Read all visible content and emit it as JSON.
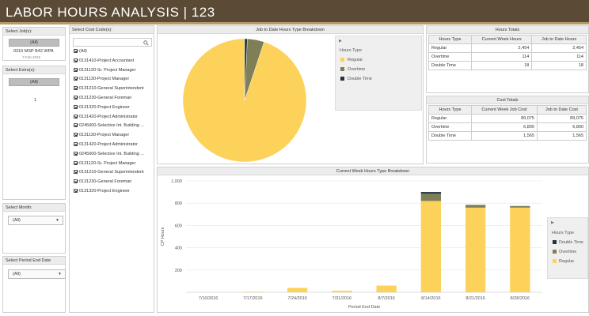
{
  "header": {
    "title": "LABOR HOURS ANALYSIS | 123"
  },
  "jobs": {
    "title": "Select Job(s):",
    "all_label": "(All)",
    "line1": "0310 MSP B42 WPA",
    "line2": "7-Feb-2015"
  },
  "extras": {
    "title": "Select Extra(s):",
    "all_label": "(All)",
    "value": "1"
  },
  "month": {
    "title": "Select Month:",
    "value": "(All)"
  },
  "period": {
    "title": "Select Period End Date",
    "value": "(All)"
  },
  "cost_codes": {
    "title": "Select Cost Code(s):",
    "items": [
      "(All)",
      "0131410-Project Accountant",
      "0131120-Sr. Project Manager",
      "0131130-Project Manager",
      "0131210-General Superintendent",
      "0131230-General Foreman",
      "0131320-Project Engineer",
      "0131420-Project Administrator",
      "0245000-Selective Int. Building ...",
      "0131130-Project Manager",
      "0131420-Project Administrator",
      "0245000-Selective Int. Building ...",
      "0131120-Sr. Project Manager",
      "0131210-General Superintendent",
      "0131230-General Foreman",
      "0131320-Project Engineer"
    ]
  },
  "pie": {
    "title": "Job to Date Hours Type Breakdown",
    "legend_title": "Hours Type",
    "legend": [
      {
        "label": "Regular",
        "color": "#fdd25a"
      },
      {
        "label": "Overtime",
        "color": "#7f7f56"
      },
      {
        "label": "Double Time",
        "color": "#1f3340"
      }
    ]
  },
  "hours_totals": {
    "title": "Hours Totals",
    "headers": [
      "Hours Type",
      "Current Week Hours",
      "Job to Date Hours"
    ],
    "rows": [
      [
        "Regular",
        "2,454",
        "2,454"
      ],
      [
        "Overtime",
        "114",
        "114"
      ],
      [
        "Double Time",
        "18",
        "18"
      ]
    ]
  },
  "cost_totals": {
    "title": "Cost Totals",
    "headers": [
      "Hours Type",
      "Current Week Job Cost",
      "Job to Date Cost"
    ],
    "rows": [
      [
        "Regular",
        "89,075",
        "89,075"
      ],
      [
        "Overtime",
        "6,800",
        "6,800"
      ],
      [
        "Double Time",
        "1,565",
        "1,565"
      ]
    ]
  },
  "bar": {
    "title": "Current Week Hours Type Breakdown",
    "legend_title": "Hours Type",
    "legend": [
      {
        "label": "Double Time",
        "color": "#1f3340"
      },
      {
        "label": "Overtime",
        "color": "#7f7f56"
      },
      {
        "label": "Regular",
        "color": "#fdd25a"
      }
    ],
    "ytick_labels": [
      "1,000",
      "800",
      "600",
      "400",
      "200"
    ],
    "xtick_labels": [
      "7/10/2016",
      "7/17/2016",
      "7/24/2016",
      "7/31/2016",
      "8/7/2016",
      "8/14/2016",
      "8/21/2016",
      "8/28/2016"
    ]
  },
  "chart_data": [
    {
      "type": "pie",
      "title": "Job to Date Hours Type Breakdown",
      "legend_title": "Hours Type",
      "categories": [
        "Regular",
        "Overtime",
        "Double Time"
      ],
      "values": [
        2454,
        114,
        18
      ],
      "colors": [
        "#fdd25a",
        "#7f7f56",
        "#1f3340"
      ],
      "legend": "right"
    },
    {
      "type": "bar",
      "stacked": true,
      "title": "Current Week Hours Type Breakdown",
      "xlabel": "Period End Date",
      "ylabel": "CP Hours",
      "ylim": [
        0,
        1000
      ],
      "yticks": [
        200,
        400,
        600,
        800,
        1000
      ],
      "categories": [
        "7/10/2016",
        "7/17/2016",
        "7/24/2016",
        "7/31/2016",
        "8/7/2016",
        "8/14/2016",
        "8/21/2016",
        "8/28/2016"
      ],
      "series": [
        {
          "name": "Regular",
          "color": "#fdd25a",
          "values": [
            0,
            5,
            40,
            15,
            60,
            820,
            760,
            760
          ]
        },
        {
          "name": "Overtime",
          "color": "#7f7f56",
          "values": [
            0,
            0,
            0,
            0,
            0,
            65,
            25,
            15
          ]
        },
        {
          "name": "Double Time",
          "color": "#1f3340",
          "values": [
            0,
            0,
            0,
            0,
            0,
            15,
            0,
            0
          ]
        }
      ],
      "legend": "right",
      "grid": true
    }
  ]
}
